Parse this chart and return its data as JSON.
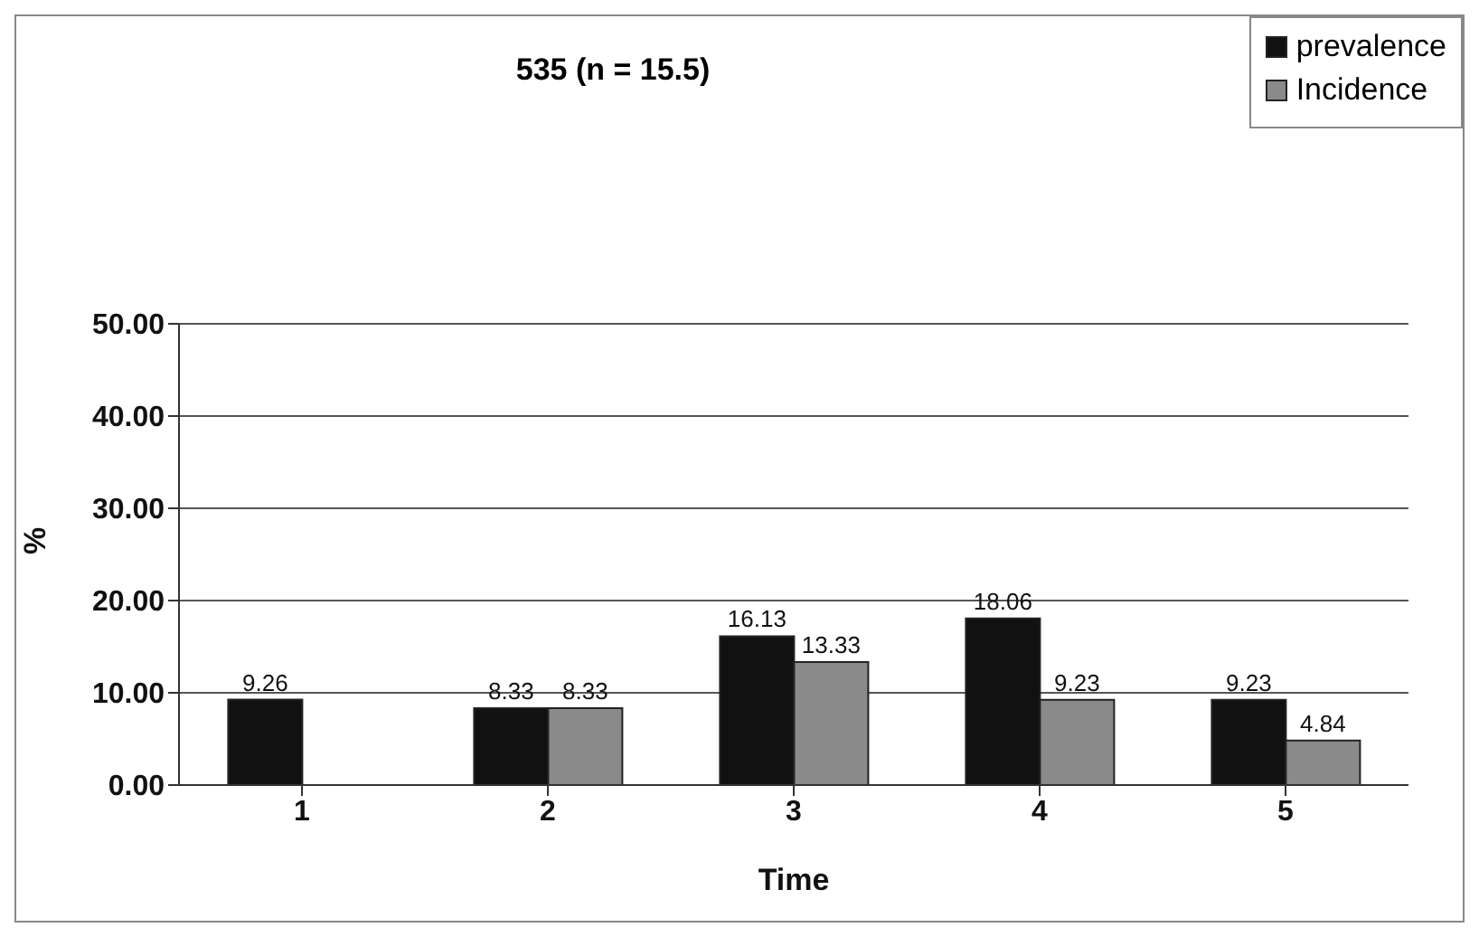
{
  "chart_data": {
    "type": "bar",
    "title": "535 (n = 15.5)",
    "xlabel": "Time",
    "ylabel": "%",
    "categories": [
      "1",
      "2",
      "3",
      "4",
      "5"
    ],
    "series": [
      {
        "name": "prevalence",
        "color": "#111111",
        "values": [
          9.26,
          8.33,
          16.13,
          18.06,
          9.23
        ]
      },
      {
        "name": "Incidence",
        "color": "#8a8a8a",
        "values": [
          null,
          8.33,
          13.33,
          9.23,
          4.84
        ]
      }
    ],
    "ylim": [
      0,
      50
    ],
    "yticks": [
      {
        "value": 0,
        "label": "0.00"
      },
      {
        "value": 10,
        "label": "10.00"
      },
      {
        "value": 20,
        "label": "20.00"
      },
      {
        "value": 30,
        "label": "30.00"
      },
      {
        "value": 40,
        "label": "40.00"
      },
      {
        "value": 50,
        "label": "50.00"
      }
    ],
    "grid": "y",
    "legend": "top right",
    "data_labels": true
  }
}
